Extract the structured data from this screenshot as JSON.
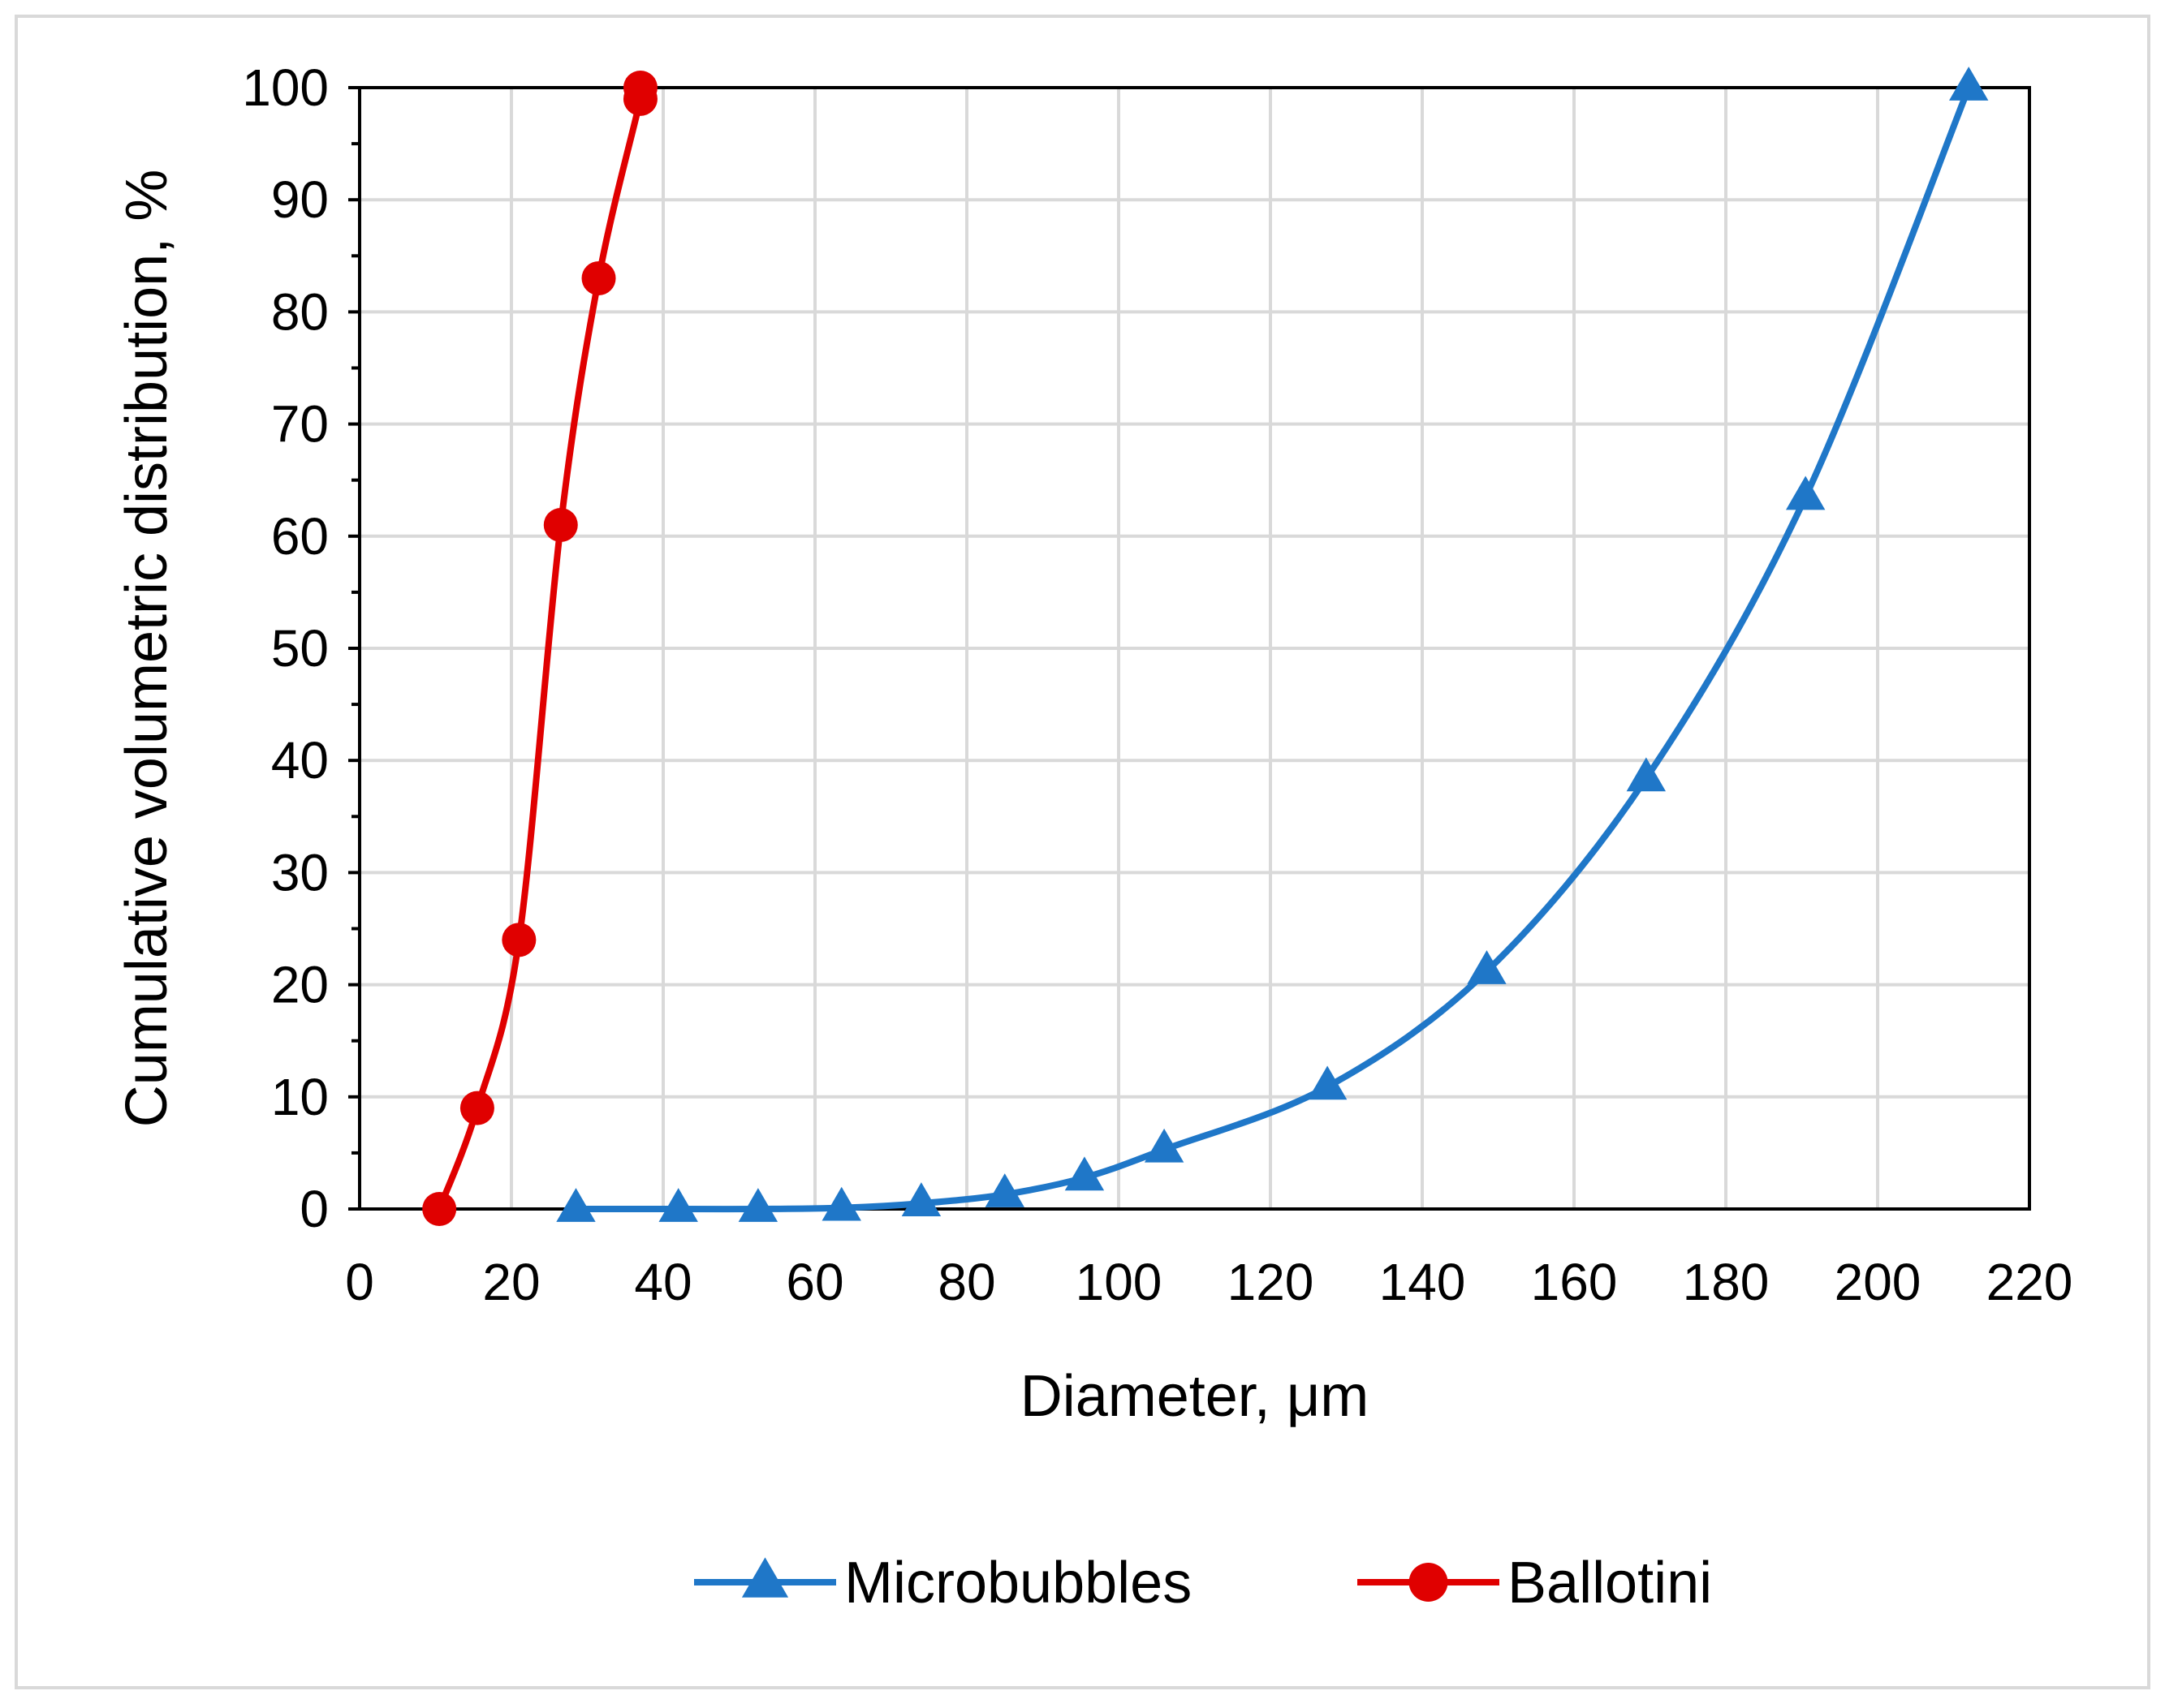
{
  "chart_data": {
    "type": "line",
    "title": "",
    "xlabel": "Diameter, μm",
    "ylabel": "Cumulative volumetric distribution, %",
    "xlim": [
      0,
      220
    ],
    "ylim": [
      0,
      100
    ],
    "x_ticks": [
      0,
      20,
      40,
      60,
      80,
      100,
      120,
      140,
      160,
      180,
      200,
      220
    ],
    "y_ticks": [
      0,
      10,
      20,
      30,
      40,
      50,
      60,
      70,
      80,
      90,
      100
    ],
    "x_tick_labels": [
      "0",
      "20",
      "40",
      "60",
      "80",
      "100",
      "120",
      "140",
      "160",
      "180",
      "200",
      "220"
    ],
    "y_tick_labels": [
      "0",
      "10",
      "20",
      "30",
      "40",
      "50",
      "60",
      "70",
      "80",
      "90",
      "100"
    ],
    "grid": true,
    "legend_position": "bottom",
    "series": [
      {
        "name": "Microbubbles",
        "color": "#1F77C8",
        "marker": "triangle",
        "x": [
          28.5,
          42,
          52.5,
          63.5,
          74,
          85,
          95.5,
          106,
          127.5,
          148.5,
          169.5,
          190.5,
          212
        ],
        "y": [
          0,
          0,
          0,
          0.1,
          0.5,
          1.3,
          2.8,
          5.3,
          10.9,
          21.2,
          38.4,
          63.5,
          100
        ]
      },
      {
        "name": "Ballotini",
        "color": "#E00000",
        "marker": "circle",
        "x": [
          10.5,
          15.5,
          21,
          26.5,
          31.5,
          37,
          37
        ],
        "y": [
          0,
          9,
          24,
          61,
          83,
          99,
          100
        ]
      }
    ]
  }
}
